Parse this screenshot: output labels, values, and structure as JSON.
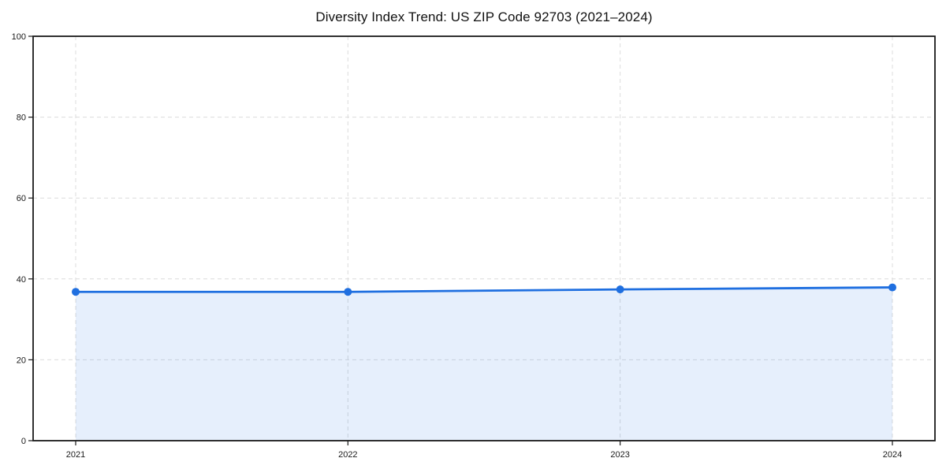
{
  "chart_data": {
    "type": "line",
    "title": "Diversity Index Trend: US ZIP Code 92703 (2021–2024)",
    "categories": [
      "2021",
      "2022",
      "2023",
      "2024"
    ],
    "values": [
      36.8,
      36.8,
      37.4,
      37.9
    ],
    "xlabel": "",
    "ylabel": "",
    "ylim": [
      0,
      100
    ],
    "yticks": [
      0,
      20,
      40,
      60,
      80,
      100
    ],
    "grid": "dashed",
    "legend_position": "none",
    "area_fill": true,
    "marker_style": "circle",
    "colors": {
      "line": "#1f6fe0",
      "marker": "#1f6fe0",
      "area": "rgba(31,111,224,0.11)",
      "gridline": "#dcdcdc",
      "spine": "#1a1a1a",
      "tick_label": "#1a1a1a",
      "title": "#111111",
      "background": "#ffffff"
    }
  }
}
